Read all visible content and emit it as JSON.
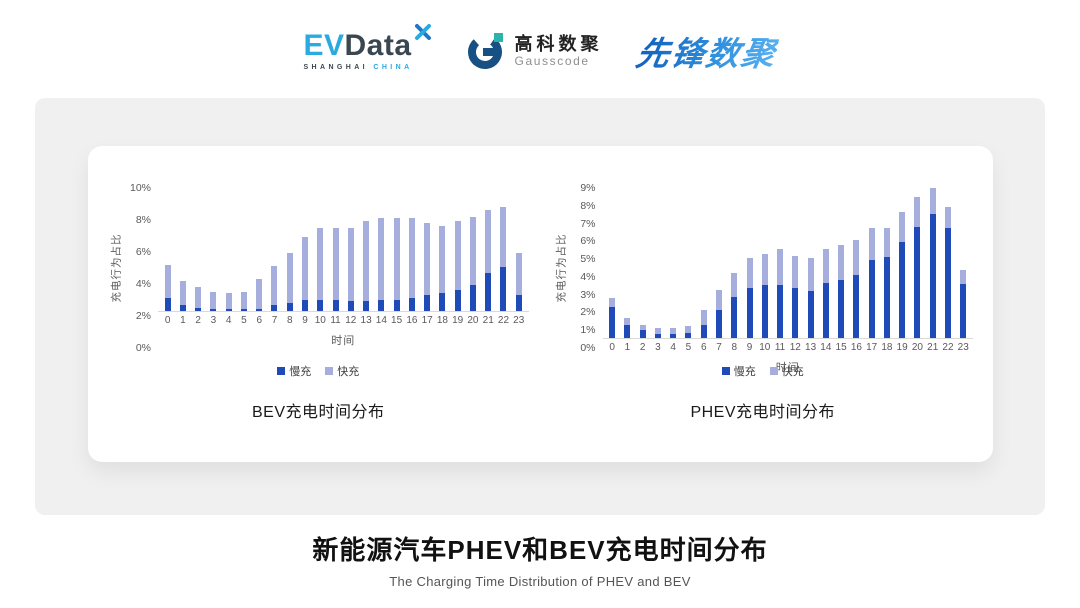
{
  "header": {
    "evdata": {
      "ev": "EV",
      "data": "Data",
      "sub_left": "SHANGHAI",
      "sub_right": "CHINA"
    },
    "gausscode": {
      "name_cn": "高科数聚",
      "name_en": "Gausscode"
    },
    "pioneer": {
      "name": "先锋数聚"
    }
  },
  "footer": {
    "title": "新能源汽车PHEV和BEV充电时间分布",
    "subtitle": "The Charging Time Distribution of PHEV and BEV"
  },
  "colors": {
    "slow": "#1e4bb7",
    "fast": "#a6aedd",
    "axis_text": "#595959",
    "baseline": "#d9d9d9",
    "panel_bg": "#f0f0f0"
  },
  "chart_data": [
    {
      "type": "bar",
      "stacked": true,
      "title": "BEV充电时间分布",
      "xlabel": "时间",
      "ylabel": "充电行为占比",
      "categories": [
        "0",
        "1",
        "2",
        "3",
        "4",
        "5",
        "6",
        "7",
        "8",
        "9",
        "10",
        "11",
        "12",
        "13",
        "14",
        "15",
        "16",
        "17",
        "18",
        "19",
        "20",
        "21",
        "22",
        "23"
      ],
      "ylim": [
        0,
        10
      ],
      "ytick_step": 2,
      "ytick_suffix": "%",
      "grid": false,
      "legend_position": "bottom",
      "series": [
        {
          "name": "慢充",
          "color": "#1e4bb7",
          "values": [
            0.8,
            0.35,
            0.2,
            0.1,
            0.1,
            0.1,
            0.15,
            0.35,
            0.5,
            0.7,
            0.7,
            0.7,
            0.6,
            0.65,
            0.7,
            0.7,
            0.8,
            1.0,
            1.1,
            1.3,
            1.6,
            2.4,
            2.75,
            1.0
          ]
        },
        {
          "name": "快充",
          "color": "#a6aedd",
          "values": [
            2.1,
            1.55,
            1.3,
            1.1,
            1.0,
            1.1,
            1.85,
            2.45,
            3.1,
            3.9,
            4.5,
            4.5,
            4.6,
            4.95,
            5.1,
            5.1,
            5.0,
            4.5,
            4.2,
            4.3,
            4.3,
            3.9,
            3.75,
            2.6
          ]
        }
      ]
    },
    {
      "type": "bar",
      "stacked": true,
      "title": "PHEV充电时间分布",
      "xlabel": "时间",
      "ylabel": "充电行为占比",
      "categories": [
        "0",
        "1",
        "2",
        "3",
        "4",
        "5",
        "6",
        "7",
        "8",
        "9",
        "10",
        "11",
        "12",
        "13",
        "14",
        "15",
        "16",
        "17",
        "18",
        "19",
        "20",
        "21",
        "22",
        "23"
      ],
      "ylim": [
        0,
        9
      ],
      "ytick_step": 1,
      "ytick_suffix": "%",
      "grid": false,
      "legend_position": "bottom",
      "series": [
        {
          "name": "慢充",
          "color": "#1e4bb7",
          "values": [
            1.75,
            0.75,
            0.45,
            0.25,
            0.25,
            0.3,
            0.75,
            1.6,
            2.3,
            2.8,
            3.0,
            3.0,
            2.8,
            2.65,
            3.1,
            3.3,
            3.55,
            4.4,
            4.55,
            5.4,
            6.25,
            7.0,
            6.2,
            3.05
          ]
        },
        {
          "name": "快充",
          "color": "#a6aedd",
          "values": [
            0.5,
            0.4,
            0.3,
            0.3,
            0.3,
            0.4,
            0.85,
            1.1,
            1.35,
            1.7,
            1.75,
            2.0,
            1.8,
            1.85,
            1.9,
            1.95,
            2.0,
            1.8,
            1.65,
            1.7,
            1.7,
            1.45,
            1.2,
            0.8
          ]
        }
      ]
    }
  ]
}
